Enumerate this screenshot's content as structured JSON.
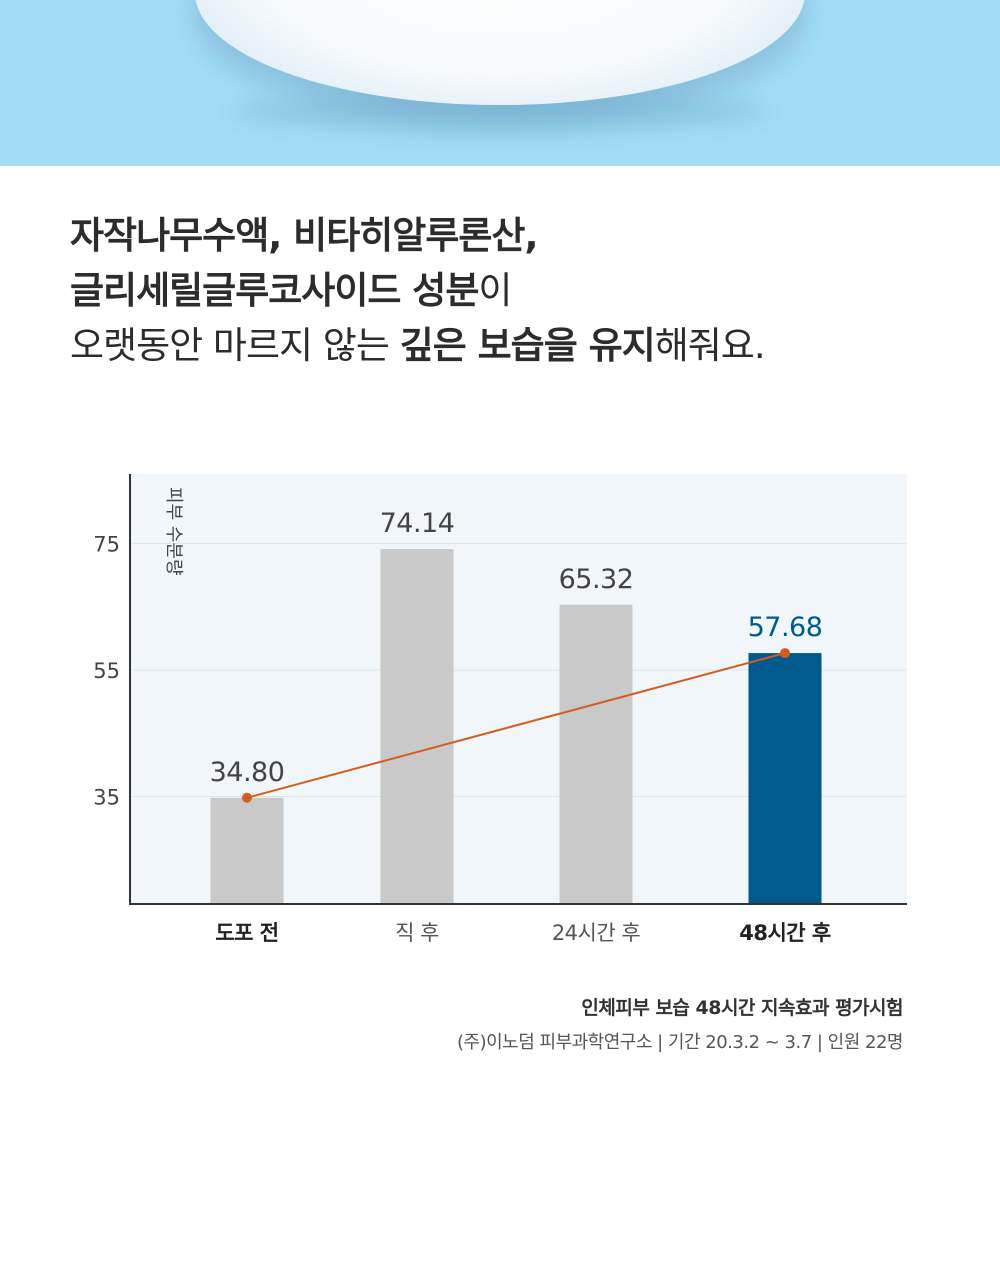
{
  "headline": {
    "line1_bold": "자작나무수액, 비타히알루론산,",
    "line2_bold": "글리세릴글루코사이드 성분",
    "line2_light": "이",
    "line3_light_a": "오랫동안 마르지 않는 ",
    "line3_bold": "깊은 보습을 유지",
    "line3_light_b": "해줘요."
  },
  "chart_data": {
    "type": "bar",
    "categories": [
      "도포 전",
      "직 후",
      "24시간 후",
      "48시간 후"
    ],
    "values": [
      34.8,
      74.14,
      65.32,
      57.68
    ],
    "value_labels": [
      "34.80",
      "74.14",
      "65.32",
      "57.68"
    ],
    "ylabel": "피부 수분량",
    "yticks": [
      35,
      55,
      75
    ],
    "ylim": [
      18,
      86
    ],
    "trend_line": {
      "from_index": 0,
      "to_index": 3
    },
    "highlight_index": 3,
    "bold_categories": [
      0,
      3
    ],
    "colors": {
      "bar": "#c9c9c9",
      "highlight_bar": "#005a8c",
      "highlight_label": "#005a8c",
      "trend": "#d45d1e",
      "plot_bg": "#f0f6f9",
      "grid": "#dde6ea",
      "axis": "#333333"
    }
  },
  "footnote": {
    "title": "인체피부 보습 48시간 지속효과 평가시험",
    "sub": "(주)이노덤 피부과학연구소 | 기간 20.3.2 ~ 3.7 | 인원 22명"
  }
}
